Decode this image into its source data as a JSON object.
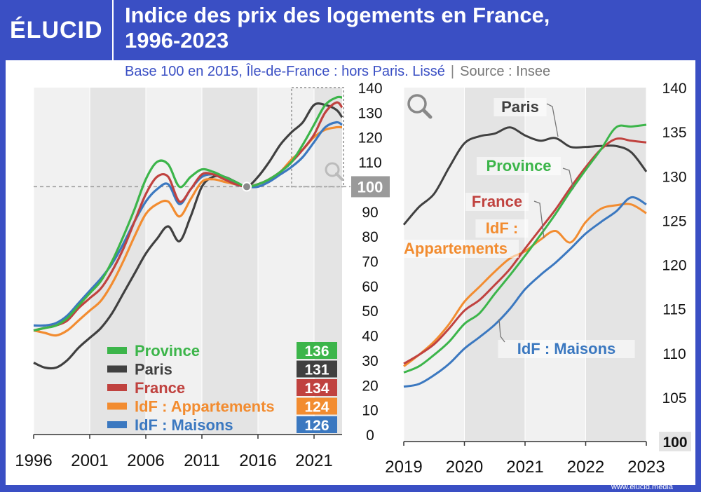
{
  "header": {
    "logo": "ÉLUCID",
    "title_line1": "Indice des prix des logements en France,",
    "title_line2": "1996-2023",
    "subtitle": "Base 100 en 2015, Île-de-France : hors Paris. Lissé",
    "source": "Source : Insee"
  },
  "footer": {
    "url": "www.elucid.media"
  },
  "colors": {
    "Province": "#3cb54a",
    "Paris": "#404040",
    "France": "#c0423f",
    "IdF : Appartements": "#f28c30",
    "IdF : Maisons": "#3b78c0",
    "accent": "#3a4fc4"
  },
  "chart_data": [
    {
      "type": "line",
      "title": "Indice des prix des logements en France, 1996-2023",
      "xlim": [
        1996,
        2023.5
      ],
      "ylim": [
        0,
        140
      ],
      "x_ticks": [
        "1996",
        "2001",
        "2006",
        "2011",
        "2016",
        "2021"
      ],
      "y_ticks": [
        "0",
        "10",
        "20",
        "30",
        "40",
        "50",
        "60",
        "70",
        "80",
        "90",
        "100",
        "110",
        "120",
        "130",
        "140"
      ],
      "y_highlight": "100",
      "reference_line": 100,
      "legend": [
        {
          "name": "Province",
          "value": "136"
        },
        {
          "name": "Paris",
          "value": "131"
        },
        {
          "name": "France",
          "value": "134"
        },
        {
          "name": "IdF : Appartements",
          "value": "124"
        },
        {
          "name": "IdF : Maisons",
          "value": "126"
        }
      ],
      "x": [
        1996,
        1997,
        1998,
        1999,
        2000,
        2001,
        2002,
        2003,
        2004,
        2005,
        2006,
        2007,
        2008,
        2009,
        2010,
        2011,
        2012,
        2013,
        2014,
        2015,
        2016,
        2017,
        2018,
        2019,
        2020,
        2021,
        2022,
        2023,
        2023.5
      ],
      "series": [
        {
          "name": "Province",
          "values": [
            42,
            43,
            44,
            47,
            52,
            57,
            62,
            70,
            80,
            91,
            103,
            110,
            109,
            100,
            104,
            107,
            106,
            104,
            102,
            100,
            101,
            103,
            106,
            110,
            117,
            125,
            133,
            136,
            136
          ]
        },
        {
          "name": "Paris",
          "values": [
            29,
            27,
            27,
            30,
            35,
            39,
            43,
            49,
            57,
            65,
            73,
            79,
            84,
            78,
            88,
            100,
            104,
            104,
            102,
            100,
            104,
            110,
            117,
            122,
            126,
            133,
            133,
            131,
            128
          ]
        },
        {
          "name": "France",
          "values": [
            42,
            43,
            44,
            46,
            51,
            55,
            59,
            66,
            75,
            86,
            97,
            104,
            104,
            94,
            99,
            105,
            105,
            103,
            101,
            100,
            101,
            103,
            106,
            110,
            115,
            121,
            130,
            134,
            132
          ]
        },
        {
          "name": "IdF : Appartements",
          "values": [
            42,
            41,
            40,
            42,
            46,
            50,
            54,
            61,
            70,
            80,
            89,
            93,
            94,
            88,
            95,
            102,
            103,
            102,
            101,
            100,
            101,
            103,
            106,
            111,
            115,
            120,
            123,
            124,
            124
          ]
        },
        {
          "name": "IdF : Maisons",
          "values": [
            44,
            44,
            45,
            48,
            53,
            58,
            63,
            69,
            77,
            86,
            94,
            99,
            101,
            93,
            99,
            104,
            105,
            104,
            101,
            100,
            100,
            102,
            105,
            108,
            112,
            118,
            124,
            126,
            125
          ]
        }
      ],
      "reference_point": {
        "x": 2015,
        "y": 100
      },
      "zoom_box": {
        "x": [
          2019,
          2023.5
        ],
        "y": [
          100,
          140
        ]
      }
    },
    {
      "type": "line",
      "xlim": [
        2019,
        2023
      ],
      "ylim": [
        100,
        140
      ],
      "x_ticks": [
        "2019",
        "2020",
        "2021",
        "2022",
        "2023"
      ],
      "y_ticks": [
        "105",
        "110",
        "115",
        "120",
        "125",
        "130",
        "135",
        "140"
      ],
      "y_highlight": "100",
      "x": [
        2019,
        2019.25,
        2019.5,
        2019.75,
        2020,
        2020.25,
        2020.5,
        2020.75,
        2021,
        2021.25,
        2021.5,
        2021.75,
        2022,
        2022.25,
        2022.5,
        2022.75,
        2023
      ],
      "series": [
        {
          "name": "Paris",
          "values": [
            124.5,
            126.5,
            128,
            131,
            133.7,
            134.5,
            134.8,
            135.5,
            134.6,
            134,
            134.3,
            133.3,
            133.3,
            133.4,
            133.4,
            132.7,
            130.5
          ]
        },
        {
          "name": "Province",
          "values": [
            107.8,
            108.5,
            109.8,
            111.3,
            113.3,
            114.5,
            116.7,
            118.8,
            121,
            123.3,
            125.7,
            128.3,
            130.7,
            133,
            135.5,
            135.6,
            135.8
          ]
        },
        {
          "name": "France",
          "values": [
            108.8,
            109.8,
            111,
            112.8,
            114.8,
            116,
            117.7,
            119.5,
            121.8,
            124,
            126.2,
            128.7,
            131,
            133,
            134.2,
            134,
            133.8
          ]
        },
        {
          "name": "IdF : Appartements",
          "values": [
            108.5,
            109.8,
            111.3,
            113.3,
            115.8,
            117.5,
            119.2,
            120.7,
            121.5,
            122.8,
            123.8,
            122.5,
            124.8,
            126.3,
            126.7,
            126.8,
            125.8
          ]
        },
        {
          "name": "IdF : Maisons",
          "values": [
            106.2,
            106.5,
            107.5,
            108.8,
            110.5,
            111.8,
            113.2,
            115,
            117.2,
            118.8,
            120.2,
            121.8,
            123.5,
            124.8,
            126,
            127.6,
            126.8
          ]
        }
      ],
      "annotations": [
        {
          "text": "Paris",
          "series": "Paris",
          "color": "#404040"
        },
        {
          "text": "Province",
          "series": "Province",
          "color": "#3cb54a"
        },
        {
          "text": "France",
          "series": "France",
          "color": "#c0423f"
        },
        {
          "text": "IdF :",
          "series": "IdF : Appartements",
          "color": "#f28c30"
        },
        {
          "text": "Appartements",
          "series": "IdF : Appartements",
          "color": "#f28c30"
        },
        {
          "text": "IdF : Maisons",
          "series": "IdF : Maisons",
          "color": "#3b78c0"
        }
      ]
    }
  ]
}
